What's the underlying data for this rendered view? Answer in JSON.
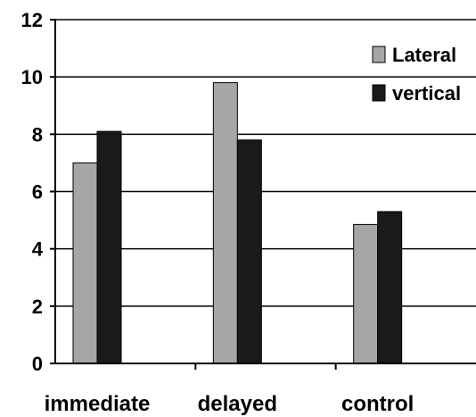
{
  "chart_data": {
    "type": "bar",
    "categories": [
      "immediate",
      "delayed",
      "control"
    ],
    "series": [
      {
        "name": "Lateral",
        "values": [
          7.0,
          9.8,
          4.85
        ],
        "color": "#a6a6a6"
      },
      {
        "name": "vertical",
        "values": [
          8.1,
          7.8,
          5.3
        ],
        "color": "#1a1a1a"
      }
    ],
    "ylim": [
      0,
      12
    ],
    "yticks": [
      "0",
      "2",
      "4",
      "6",
      "8",
      "10",
      "12"
    ],
    "grid": true,
    "legend_position": "top-right",
    "title": "",
    "xlabel": "",
    "ylabel": ""
  }
}
